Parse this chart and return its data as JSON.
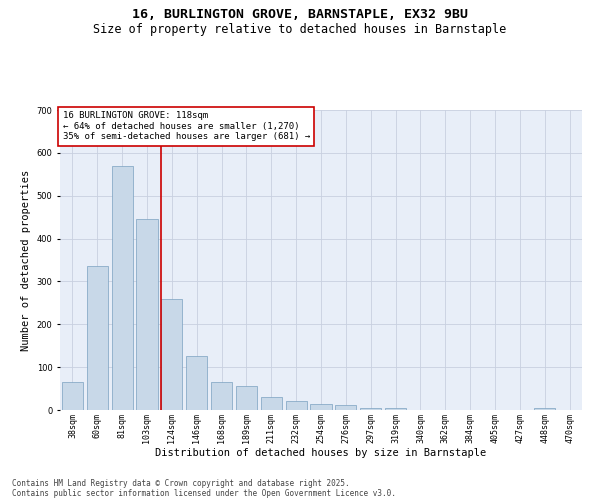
{
  "title_line1": "16, BURLINGTON GROVE, BARNSTAPLE, EX32 9BU",
  "title_line2": "Size of property relative to detached houses in Barnstaple",
  "xlabel": "Distribution of detached houses by size in Barnstaple",
  "ylabel": "Number of detached properties",
  "categories": [
    "38sqm",
    "60sqm",
    "81sqm",
    "103sqm",
    "124sqm",
    "146sqm",
    "168sqm",
    "189sqm",
    "211sqm",
    "232sqm",
    "254sqm",
    "276sqm",
    "297sqm",
    "319sqm",
    "340sqm",
    "362sqm",
    "384sqm",
    "405sqm",
    "427sqm",
    "448sqm",
    "470sqm"
  ],
  "values": [
    65,
    335,
    570,
    445,
    260,
    125,
    65,
    55,
    30,
    20,
    15,
    12,
    5,
    5,
    0,
    0,
    0,
    0,
    0,
    5,
    0
  ],
  "bar_color": "#c8d8e8",
  "bar_edge_color": "#7aa0c0",
  "vline_x": 3.55,
  "vline_color": "#cc0000",
  "annotation_text": "16 BURLINGTON GROVE: 118sqm\n← 64% of detached houses are smaller (1,270)\n35% of semi-detached houses are larger (681) →",
  "annotation_box_color": "#ffffff",
  "annotation_box_edge": "#cc0000",
  "ylim": [
    0,
    700
  ],
  "yticks": [
    0,
    100,
    200,
    300,
    400,
    500,
    600,
    700
  ],
  "grid_color": "#c8d0e0",
  "background_color": "#e8eef8",
  "footer_line1": "Contains HM Land Registry data © Crown copyright and database right 2025.",
  "footer_line2": "Contains public sector information licensed under the Open Government Licence v3.0.",
  "title_fontsize": 9.5,
  "subtitle_fontsize": 8.5,
  "axis_label_fontsize": 7.5,
  "tick_fontsize": 6,
  "annotation_fontsize": 6.5,
  "footer_fontsize": 5.5
}
